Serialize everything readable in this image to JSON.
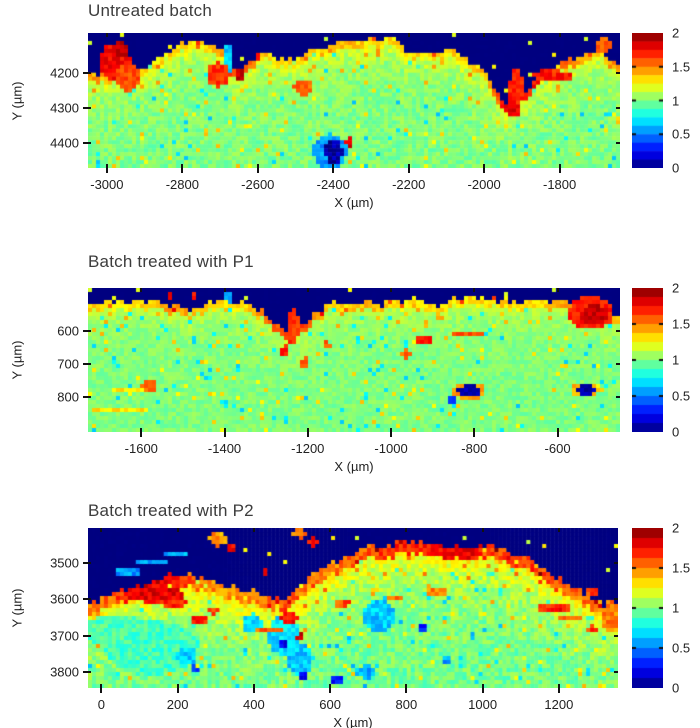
{
  "chart_data": [
    {
      "type": "heatmap",
      "title": "Untreated batch",
      "xlabel": "X (µm)",
      "ylabel": "Y (µm)",
      "x_range": [
        -3050,
        -1640
      ],
      "y_range": [
        4085,
        4472
      ],
      "x_ticks": [
        -3000,
        -2800,
        -2600,
        -2400,
        -2200,
        -2000,
        -1800
      ],
      "y_ticks": [
        4200,
        4300,
        4400
      ],
      "value_range": [
        0,
        2
      ],
      "colorbar_ticks": [
        2,
        1.5,
        1,
        0.5,
        0
      ],
      "colormap": "jet",
      "map": {
        "background": 0.0,
        "base": 1.0,
        "noise": 0.09,
        "crust_thickness": 0.055,
        "subsurface_boost": 0.18,
        "subsurface_decay": 0.12,
        "surface_profile": [
          0.3,
          0.3,
          0.28,
          0.25,
          0.16,
          0.08,
          0.06,
          0.13,
          0.3,
          0.14,
          0.18,
          0.2,
          0.12,
          0.07,
          0.05,
          0.04,
          0.03,
          0.15,
          0.12,
          0.12,
          0.2,
          0.3,
          0.55,
          0.45,
          0.28,
          0.22,
          0.16,
          0.14,
          0.27
        ],
        "crust_profile": [
          1.45,
          1.4,
          1.3,
          1.3,
          1.3,
          1.35,
          1.3,
          1.5,
          1.65,
          1.4,
          1.3,
          1.35,
          1.3,
          1.45,
          1.35,
          1.3,
          1.3,
          1.35,
          1.3,
          1.35,
          1.3,
          1.4,
          1.75,
          1.7,
          1.75,
          1.55,
          1.4,
          1.35,
          1.5
        ],
        "features": [
          [
            0.05,
            0.22,
            0.03,
            0.14,
            1.75
          ],
          [
            0.075,
            0.33,
            0.025,
            0.1,
            1.6
          ],
          [
            0.06,
            0.13,
            0.018,
            0.06,
            1.85
          ],
          [
            0.262,
            0.2,
            0.009,
            0.12,
            0.65
          ],
          [
            0.245,
            0.31,
            0.022,
            0.09,
            1.65
          ],
          [
            0.287,
            0.3,
            0.01,
            0.05,
            1.85
          ],
          [
            0.405,
            0.4,
            0.018,
            0.06,
            1.55
          ],
          [
            0.805,
            0.42,
            0.013,
            0.16,
            1.7
          ],
          [
            0.8,
            0.57,
            0.013,
            0.06,
            1.8
          ],
          [
            0.875,
            0.32,
            0.04,
            0.035,
            1.7
          ],
          [
            0.455,
            0.88,
            0.032,
            0.13,
            0.55
          ],
          [
            0.462,
            0.88,
            0.017,
            0.09,
            0.08
          ],
          [
            0.49,
            0.81,
            0.008,
            0.035,
            1.8
          ],
          [
            0.97,
            0.09,
            0.018,
            0.05,
            1.55
          ]
        ]
      }
    },
    {
      "type": "heatmap",
      "title": "Batch treated with P1",
      "xlabel": "X (µm)",
      "ylabel": "Y (µm)",
      "x_range": [
        -1728,
        -450
      ],
      "y_range": [
        470,
        905
      ],
      "x_ticks": [
        -1600,
        -1400,
        -1200,
        -1000,
        -800,
        -600
      ],
      "y_ticks": [
        600,
        700,
        800
      ],
      "value_range": [
        0,
        2
      ],
      "colorbar_ticks": [
        2,
        1.5,
        1,
        0.5,
        0
      ],
      "colormap": "jet",
      "map": {
        "background": 0.0,
        "base": 1.0,
        "noise": 0.07,
        "crust_thickness": 0.05,
        "subsurface_boost": 0.12,
        "subsurface_decay": 0.12,
        "surface_profile": [
          0.12,
          0.1,
          0.09,
          0.1,
          0.12,
          0.16,
          0.11,
          0.09,
          0.12,
          0.22,
          0.32,
          0.18,
          0.1,
          0.09,
          0.12,
          0.1,
          0.08,
          0.12,
          0.08,
          0.07,
          0.09,
          0.11,
          0.09,
          0.08,
          0.1,
          0.12,
          0.22
        ],
        "crust_profile": [
          1.35,
          1.3,
          1.3,
          1.35,
          1.45,
          1.4,
          1.3,
          1.3,
          1.35,
          1.55,
          1.7,
          1.5,
          1.3,
          1.35,
          1.4,
          1.3,
          1.3,
          1.35,
          1.3,
          1.3,
          1.35,
          1.3,
          1.3,
          1.4,
          1.55,
          1.5,
          1.35
        ],
        "features": [
          [
            0.265,
            0.065,
            0.008,
            0.035,
            0.6
          ],
          [
            0.155,
            0.06,
            0.007,
            0.03,
            1.8
          ],
          [
            0.2,
            0.055,
            0.006,
            0.028,
            1.7
          ],
          [
            0.385,
            0.27,
            0.012,
            0.13,
            1.65
          ],
          [
            0.37,
            0.44,
            0.009,
            0.04,
            1.7
          ],
          [
            0.408,
            0.52,
            0.008,
            0.035,
            1.6
          ],
          [
            0.448,
            0.4,
            0.007,
            0.03,
            1.6
          ],
          [
            0.63,
            0.36,
            0.02,
            0.025,
            1.7
          ],
          [
            0.713,
            0.325,
            0.032,
            0.02,
            1.6
          ],
          [
            0.597,
            0.46,
            0.013,
            0.03,
            1.55
          ],
          [
            0.115,
            0.68,
            0.016,
            0.035,
            1.55
          ],
          [
            0.075,
            0.72,
            0.05,
            0.014,
            1.3
          ],
          [
            0.06,
            0.845,
            0.055,
            0.013,
            1.3
          ],
          [
            0.945,
            0.175,
            0.043,
            0.115,
            1.7
          ],
          [
            0.952,
            0.185,
            0.026,
            0.07,
            1.85
          ],
          [
            0.716,
            0.715,
            0.032,
            0.058,
            1.45
          ],
          [
            0.716,
            0.715,
            0.021,
            0.04,
            0.08
          ],
          [
            0.684,
            0.785,
            0.008,
            0.025,
            0.35
          ],
          [
            0.935,
            0.71,
            0.028,
            0.048,
            1.4
          ],
          [
            0.935,
            0.71,
            0.02,
            0.036,
            0.08
          ]
        ]
      }
    },
    {
      "type": "heatmap",
      "title": "Batch treated with P2",
      "xlabel": "X (µm)",
      "ylabel": "Y (µm)",
      "x_range": [
        -35,
        1355
      ],
      "y_range": [
        3403,
        3845
      ],
      "x_ticks": [
        0,
        200,
        400,
        600,
        800,
        1000,
        1200
      ],
      "y_ticks": [
        3500,
        3600,
        3700,
        3800
      ],
      "value_range": [
        0,
        2
      ],
      "colorbar_ticks": [
        2,
        1.5,
        1,
        0.5,
        0
      ],
      "colormap": "jet",
      "map": {
        "background": 0.0,
        "base": 0.97,
        "noise": 0.11,
        "crust_thickness": 0.075,
        "subsurface_boost": 0.3,
        "subsurface_decay": 0.18,
        "surface_profile": [
          0.46,
          0.42,
          0.37,
          0.32,
          0.3,
          0.31,
          0.34,
          0.38,
          0.42,
          0.46,
          0.3,
          0.22,
          0.16,
          0.11,
          0.09,
          0.08,
          0.1,
          0.13,
          0.11,
          0.14,
          0.2,
          0.28,
          0.36,
          0.45,
          0.5
        ],
        "crust_profile": [
          1.5,
          1.55,
          1.75,
          1.85,
          1.7,
          1.5,
          1.45,
          1.5,
          1.55,
          1.6,
          1.5,
          1.5,
          1.55,
          1.6,
          1.7,
          1.7,
          1.75,
          1.8,
          1.7,
          1.6,
          1.65,
          1.6,
          1.55,
          1.5,
          1.45
        ],
        "features": [
          [
            0.12,
            0.75,
            0.09,
            0.17,
            0.88
          ],
          [
            0.05,
            0.64,
            0.06,
            0.1,
            0.9
          ],
          [
            0.37,
            0.67,
            0.03,
            0.13,
            0.7
          ],
          [
            0.4,
            0.82,
            0.025,
            0.1,
            0.65
          ],
          [
            0.31,
            0.6,
            0.018,
            0.06,
            0.7
          ],
          [
            0.55,
            0.55,
            0.03,
            0.1,
            0.65
          ],
          [
            0.63,
            0.63,
            0.01,
            0.025,
            0.3
          ],
          [
            0.37,
            0.73,
            0.008,
            0.03,
            0.2
          ],
          [
            0.405,
            0.92,
            0.01,
            0.025,
            0.25
          ],
          [
            0.185,
            0.8,
            0.02,
            0.06,
            0.65
          ],
          [
            0.2,
            0.88,
            0.008,
            0.02,
            0.3
          ],
          [
            0.68,
            0.83,
            0.008,
            0.02,
            0.55
          ],
          [
            0.47,
            0.95,
            0.012,
            0.02,
            0.3
          ],
          [
            0.525,
            0.9,
            0.02,
            0.04,
            0.6
          ],
          [
            0.075,
            0.275,
            0.03,
            0.022,
            0.55
          ],
          [
            0.123,
            0.215,
            0.03,
            0.022,
            0.55
          ],
          [
            0.165,
            0.16,
            0.02,
            0.018,
            0.6
          ],
          [
            0.245,
            0.07,
            0.016,
            0.045,
            1.45
          ],
          [
            0.27,
            0.12,
            0.009,
            0.03,
            1.75
          ],
          [
            0.4,
            0.035,
            0.013,
            0.03,
            1.5
          ],
          [
            0.425,
            0.085,
            0.01,
            0.03,
            1.7
          ],
          [
            0.335,
            0.27,
            0.007,
            0.025,
            1.75
          ],
          [
            0.13,
            0.415,
            0.052,
            0.055,
            1.8
          ],
          [
            0.16,
            0.465,
            0.03,
            0.03,
            1.7
          ],
          [
            0.21,
            0.57,
            0.015,
            0.03,
            1.7
          ],
          [
            0.237,
            0.52,
            0.01,
            0.025,
            1.6
          ],
          [
            0.38,
            0.56,
            0.017,
            0.035,
            1.75
          ],
          [
            0.4,
            0.68,
            0.009,
            0.02,
            1.8
          ],
          [
            0.345,
            0.64,
            0.026,
            0.02,
            1.55
          ],
          [
            0.48,
            0.47,
            0.013,
            0.03,
            1.6
          ],
          [
            0.66,
            0.4,
            0.023,
            0.025,
            1.5
          ],
          [
            0.58,
            0.44,
            0.015,
            0.02,
            1.5
          ],
          [
            0.88,
            0.5,
            0.03,
            0.035,
            1.7
          ],
          [
            0.91,
            0.56,
            0.02,
            0.02,
            1.6
          ],
          [
            0.95,
            0.4,
            0.012,
            0.02,
            1.6
          ],
          [
            0.985,
            0.55,
            0.013,
            0.1,
            1.5
          ],
          [
            0.95,
            0.63,
            0.01,
            0.02,
            1.65
          ]
        ]
      }
    }
  ]
}
